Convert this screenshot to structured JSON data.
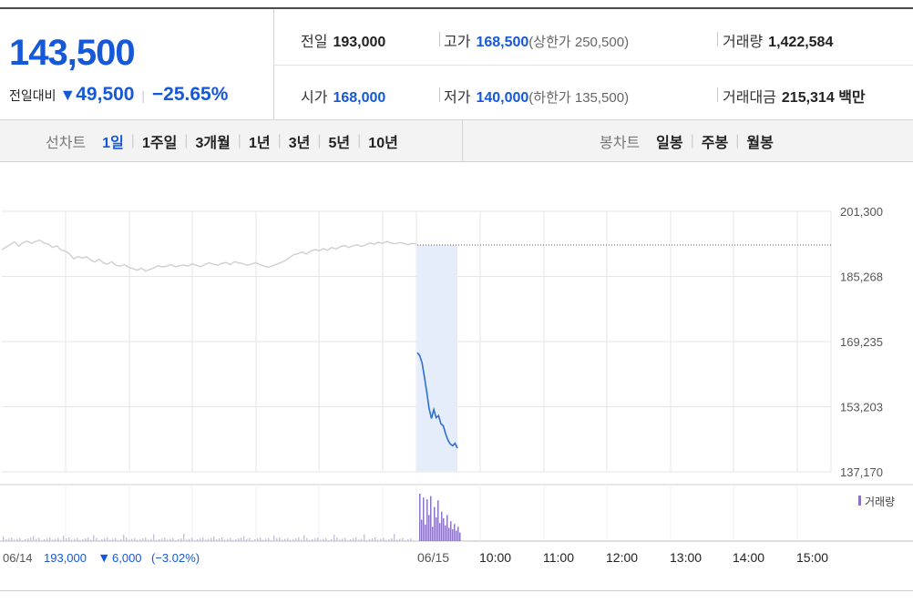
{
  "quote": {
    "current_price": "143,500",
    "change_label": "전일대비",
    "change_symbol": "▼",
    "change_value": "49,500",
    "change_rate": "−25.65%",
    "prev_label": "전일",
    "prev_value": "193,000",
    "high_label": "고가",
    "high_value": "168,500",
    "upper_limit": "(상한가 250,500)",
    "volume_label": "거래량",
    "volume_value": "1,422,584",
    "open_label": "시가",
    "open_value": "168,000",
    "low_label": "저가",
    "low_value": "140,000",
    "lower_limit": "(하한가 135,500)",
    "amount_label": "거래대금",
    "amount_value": "215,314",
    "amount_unit": "백만"
  },
  "tabs": {
    "line_label": "선차트",
    "line_items": [
      "1일",
      "1주일",
      "3개월",
      "1년",
      "3년",
      "5년",
      "10년"
    ],
    "line_active": 0,
    "candle_label": "봉차트",
    "candle_items": [
      "일봉",
      "주봉",
      "월봉"
    ]
  },
  "colors": {
    "accent": "#1558d8",
    "prev_day_line": "#cfcfcf",
    "today_line": "#2f6fd0",
    "highlight": "#e4edf9",
    "volume_bar": "#8b74c2",
    "grid": "#e6e6e6"
  },
  "chart_data": {
    "type": "line",
    "y_ticks": [
      "201,300",
      "185,268",
      "169,235",
      "153,203",
      "137,170"
    ],
    "ylim": [
      137170,
      201300
    ],
    "reference_price": 193000,
    "x_labels": [
      "06/15",
      "10:00",
      "11:00",
      "12:00",
      "13:00",
      "14:00",
      "15:00"
    ],
    "prev_day_summary": {
      "date": "06/14",
      "close": "193,000",
      "change_symbol": "▼",
      "change": "6,000",
      "rate": "(−3.02%)"
    },
    "series": [
      {
        "values": [
          191800,
          192500,
          193100,
          193800,
          192700,
          193600,
          194000,
          193400,
          193900,
          194200,
          193500,
          193200,
          192400,
          192800,
          191800,
          191500,
          190800,
          189600,
          190200,
          189800,
          190100,
          189300,
          188800,
          189500,
          188600,
          188300,
          188900,
          188000,
          187800,
          188200,
          187500,
          187200,
          186800,
          187300,
          186600,
          187000,
          187400,
          187900,
          187600,
          187800,
          188200,
          187600,
          187900,
          188100,
          187800,
          188400,
          188000,
          187700,
          188200,
          188600,
          188300,
          188000,
          188500,
          188700,
          188200,
          188900,
          188600,
          188400,
          188000,
          188300,
          188700,
          188200,
          187800,
          187500,
          187900,
          188300,
          188700,
          189200,
          189900,
          190600,
          190900,
          191300,
          190800,
          191500,
          191900,
          191600,
          192100,
          191700,
          192400,
          192000,
          192600,
          192900,
          192400,
          192800,
          193100,
          192700,
          193000,
          193500,
          193200,
          193700,
          193400,
          193900,
          193500,
          193300,
          193600,
          193400,
          193100,
          193400,
          193200
        ]
      },
      {
        "values": [
          166500,
          165800,
          164000,
          160500,
          156800,
          152800,
          150300,
          152500,
          150500,
          151000,
          149000,
          148500,
          146500,
          145000,
          144000,
          143600,
          144200,
          143000
        ]
      }
    ],
    "volume": {
      "legend": "거래량",
      "values": [
        1.0,
        0.45,
        0.92,
        0.35,
        0.88,
        0.55,
        0.95,
        0.3,
        0.72,
        0.5,
        0.86,
        0.38,
        0.62,
        0.48,
        0.33,
        0.55,
        0.28,
        0.42,
        0.25,
        0.36,
        0.22,
        0.3,
        0.18
      ]
    }
  }
}
